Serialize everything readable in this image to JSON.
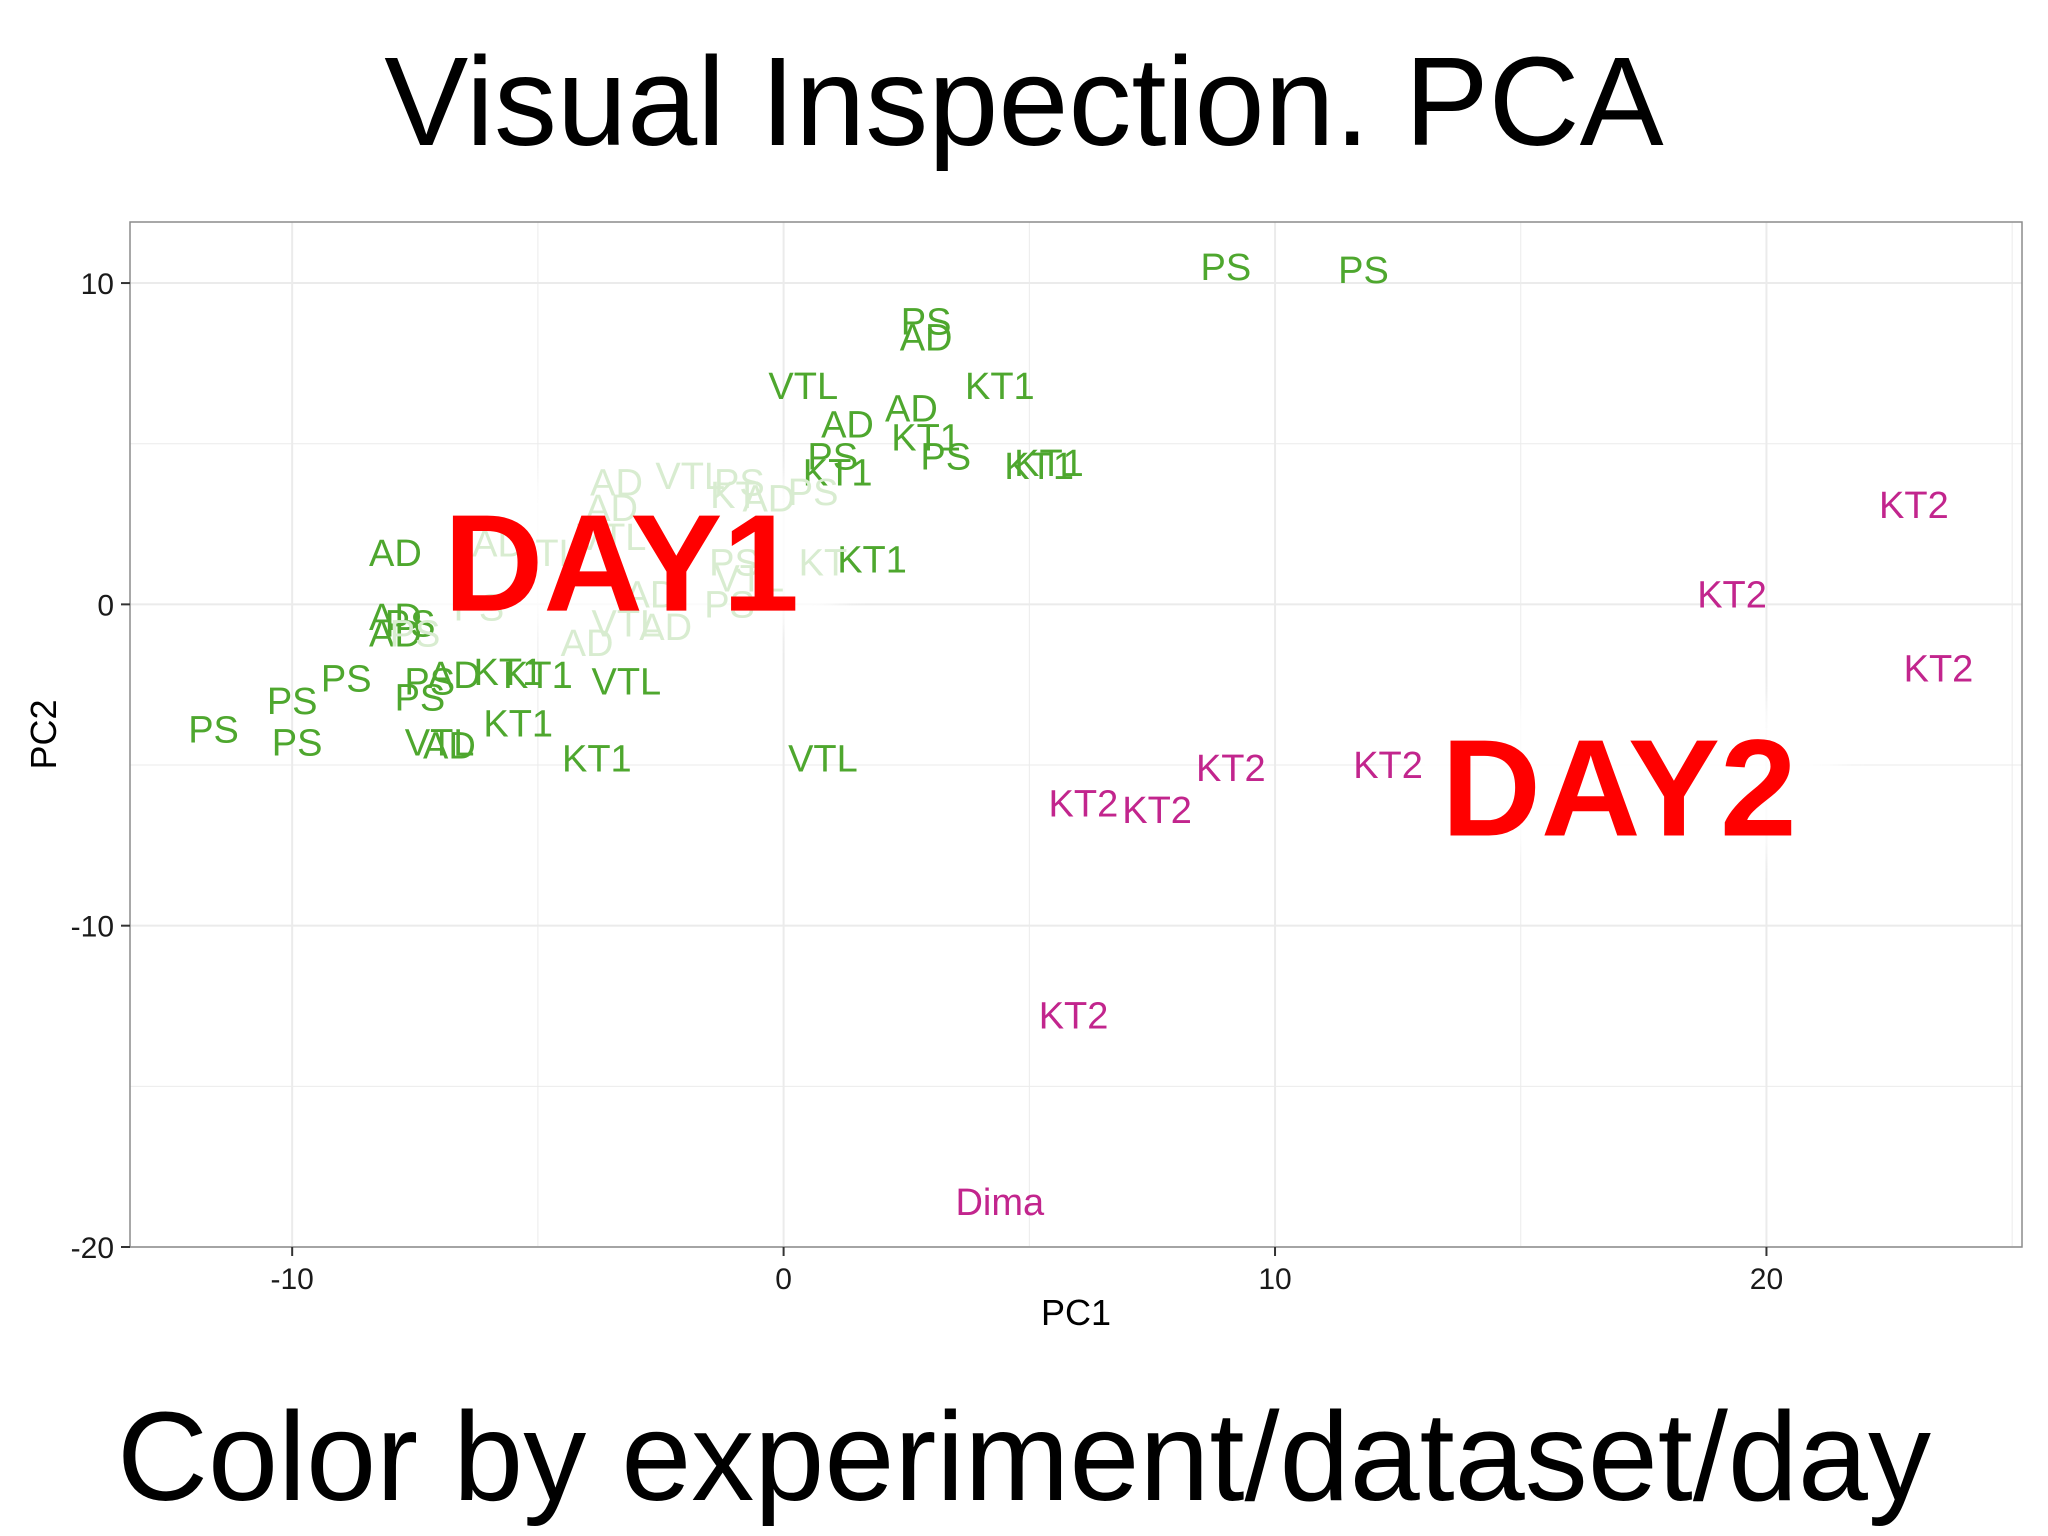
{
  "slide": {
    "title": "Visual Inspection. PCA",
    "subtitle": "Color by experiment/dataset/day"
  },
  "colors": {
    "day1": "#4ea72e",
    "day1_faded": "#d8ecd0",
    "day2": "#c2258d",
    "callout": "#ff0000",
    "grid": "#ebebeb",
    "panel_border": "#8c8c8c"
  },
  "chart_data": {
    "type": "scatter",
    "title": "",
    "xlabel": "PC1",
    "ylabel": "PC2",
    "xlim": [
      -13.3,
      25.2
    ],
    "ylim": [
      -20,
      11.9
    ],
    "xticks": [
      -10,
      0,
      10,
      20
    ],
    "yticks": [
      -20,
      -10,
      0,
      10
    ],
    "grid": true,
    "legend": "none",
    "series": [
      {
        "name": "Day1",
        "points": [
          {
            "x": 9.0,
            "y": 10.5,
            "label": "PS"
          },
          {
            "x": 11.8,
            "y": 10.4,
            "label": "PS"
          },
          {
            "x": 2.9,
            "y": 8.8,
            "label": "PS"
          },
          {
            "x": 2.9,
            "y": 8.3,
            "label": "AD"
          },
          {
            "x": 0.4,
            "y": 6.8,
            "label": "VTL"
          },
          {
            "x": 4.4,
            "y": 6.8,
            "label": "KT1"
          },
          {
            "x": 2.6,
            "y": 6.1,
            "label": "AD"
          },
          {
            "x": 1.3,
            "y": 5.6,
            "label": "AD"
          },
          {
            "x": 2.9,
            "y": 5.2,
            "label": "KT1"
          },
          {
            "x": 1.0,
            "y": 4.6,
            "label": "PS"
          },
          {
            "x": 3.3,
            "y": 4.6,
            "label": "PS"
          },
          {
            "x": 5.2,
            "y": 4.3,
            "label": "KT1"
          },
          {
            "x": 5.4,
            "y": 4.4,
            "label": "KT1"
          },
          {
            "x": 1.1,
            "y": 4.1,
            "label": "KT1"
          },
          {
            "x": -7.9,
            "y": 1.6,
            "label": "AD"
          },
          {
            "x": 1.8,
            "y": 1.4,
            "label": "KT1"
          },
          {
            "x": -7.9,
            "y": -0.4,
            "label": "AD"
          },
          {
            "x": -7.6,
            "y": -0.6,
            "label": "PS"
          },
          {
            "x": -7.9,
            "y": -0.9,
            "label": "AD"
          },
          {
            "x": -8.9,
            "y": -2.3,
            "label": "PS"
          },
          {
            "x": -7.2,
            "y": -2.4,
            "label": "PS"
          },
          {
            "x": -6.7,
            "y": -2.2,
            "label": "AD"
          },
          {
            "x": -5.6,
            "y": -2.1,
            "label": "KT1"
          },
          {
            "x": -5.0,
            "y": -2.2,
            "label": "KT1"
          },
          {
            "x": -3.2,
            "y": -2.4,
            "label": "VTL"
          },
          {
            "x": -10.0,
            "y": -3.0,
            "label": "PS"
          },
          {
            "x": -7.4,
            "y": -2.9,
            "label": "PS"
          },
          {
            "x": -11.6,
            "y": -3.9,
            "label": "PS"
          },
          {
            "x": -5.4,
            "y": -3.7,
            "label": "KT1"
          },
          {
            "x": -9.9,
            "y": -4.3,
            "label": "PS"
          },
          {
            "x": -7.0,
            "y": -4.3,
            "label": "VTL"
          },
          {
            "x": -6.8,
            "y": -4.4,
            "label": "AD"
          },
          {
            "x": -3.8,
            "y": -4.8,
            "label": "KT1"
          },
          {
            "x": 0.8,
            "y": -4.8,
            "label": "VTL"
          }
        ]
      },
      {
        "name": "Day1 (faded)",
        "points": [
          {
            "x": -3.4,
            "y": 3.8,
            "label": "AD"
          },
          {
            "x": -1.9,
            "y": 4.0,
            "label": "VTL"
          },
          {
            "x": -0.9,
            "y": 3.8,
            "label": "PS"
          },
          {
            "x": -0.3,
            "y": 3.3,
            "label": "AD"
          },
          {
            "x": 0.6,
            "y": 3.5,
            "label": "PS"
          },
          {
            "x": -1.0,
            "y": 3.4,
            "label": "KT"
          },
          {
            "x": -3.5,
            "y": 3.0,
            "label": "AD"
          },
          {
            "x": -5.8,
            "y": 1.9,
            "label": "AD"
          },
          {
            "x": -4.6,
            "y": 1.6,
            "label": "TL"
          },
          {
            "x": -3.5,
            "y": 2.1,
            "label": "VTL"
          },
          {
            "x": -1.0,
            "y": 1.3,
            "label": "PS"
          },
          {
            "x": 0.8,
            "y": 1.3,
            "label": "KT"
          },
          {
            "x": -0.7,
            "y": 0.8,
            "label": "VTL"
          },
          {
            "x": -6.2,
            "y": -0.1,
            "label": "PS"
          },
          {
            "x": -2.7,
            "y": 0.3,
            "label": "AD"
          },
          {
            "x": -1.1,
            "y": 0.0,
            "label": "PS"
          },
          {
            "x": -3.2,
            "y": -0.6,
            "label": "VTL"
          },
          {
            "x": -2.4,
            "y": -0.7,
            "label": "AD"
          },
          {
            "x": -4.0,
            "y": -1.2,
            "label": "AD"
          },
          {
            "x": -7.5,
            "y": -0.9,
            "label": "PS"
          }
        ]
      },
      {
        "name": "Day2",
        "points": [
          {
            "x": 23.0,
            "y": 3.1,
            "label": "KT2"
          },
          {
            "x": 19.3,
            "y": 0.3,
            "label": "KT2"
          },
          {
            "x": 23.5,
            "y": -2.0,
            "label": "KT2"
          },
          {
            "x": 9.1,
            "y": -5.1,
            "label": "KT2"
          },
          {
            "x": 12.3,
            "y": -5.0,
            "label": "KT2"
          },
          {
            "x": 6.1,
            "y": -6.2,
            "label": "KT2"
          },
          {
            "x": 7.6,
            "y": -6.4,
            "label": "KT2"
          },
          {
            "x": 5.9,
            "y": -12.8,
            "label": "KT2"
          },
          {
            "x": 4.4,
            "y": -18.6,
            "label": "Dima"
          }
        ]
      }
    ],
    "annotations": [
      {
        "text": "DAY1",
        "x": -3.3,
        "y": 1.3
      },
      {
        "text": "DAY2",
        "x": 17.0,
        "y": -5.7
      }
    ]
  }
}
